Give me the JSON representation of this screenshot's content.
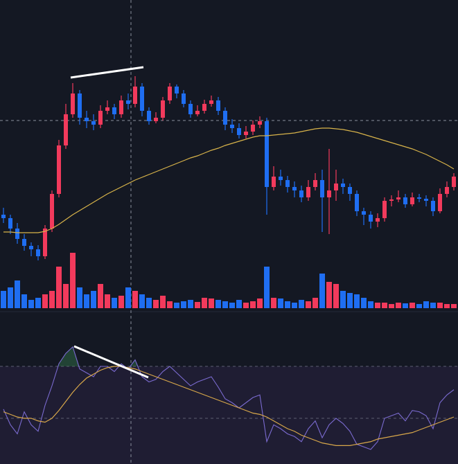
{
  "chart_data": {
    "type": "candlestick",
    "up_color": "#f23a5c",
    "down_color": "#1f6ef2",
    "ylim": [
      0,
      450
    ],
    "volume_ylim": [
      0,
      100
    ],
    "rsi_ylim": [
      0,
      100
    ],
    "rsi_levels": [
      70,
      30
    ],
    "open": [
      140,
      135,
      120,
      105,
      95,
      90,
      80,
      120,
      170,
      240,
      285,
      315,
      280,
      275,
      270,
      290,
      295,
      285,
      305,
      300,
      325,
      290,
      275,
      280,
      305,
      325,
      315,
      300,
      285,
      290,
      300,
      305,
      290,
      270,
      265,
      255,
      260,
      270,
      275,
      180,
      195,
      190,
      180,
      175,
      165,
      180,
      190,
      165,
      175,
      185,
      180,
      170,
      145,
      140,
      130,
      135,
      160,
      162,
      165,
      155,
      165,
      163,
      160,
      145,
      170,
      180
    ],
    "high": [
      150,
      140,
      128,
      112,
      100,
      96,
      125,
      175,
      248,
      300,
      330,
      320,
      290,
      285,
      298,
      305,
      300,
      312,
      315,
      340,
      330,
      295,
      288,
      310,
      330,
      328,
      320,
      305,
      298,
      306,
      312,
      310,
      295,
      278,
      272,
      268,
      276,
      282,
      280,
      210,
      205,
      196,
      188,
      182,
      190,
      200,
      205,
      235,
      205,
      192,
      185,
      175,
      150,
      145,
      142,
      165,
      168,
      175,
      170,
      172,
      170,
      168,
      165,
      178,
      188,
      200
    ],
    "low": [
      128,
      112,
      98,
      88,
      80,
      74,
      76,
      115,
      165,
      235,
      280,
      270,
      265,
      262,
      265,
      285,
      278,
      280,
      292,
      295,
      282,
      270,
      272,
      276,
      300,
      308,
      295,
      280,
      282,
      286,
      296,
      284,
      262,
      258,
      250,
      250,
      255,
      265,
      140,
      175,
      182,
      172,
      165,
      158,
      160,
      175,
      115,
      112,
      160,
      170,
      160,
      138,
      125,
      120,
      122,
      130,
      152,
      158,
      150,
      152,
      158,
      152,
      138,
      142,
      165,
      175
    ],
    "close": [
      135,
      120,
      105,
      95,
      90,
      80,
      120,
      170,
      240,
      285,
      315,
      280,
      275,
      270,
      290,
      295,
      285,
      305,
      300,
      325,
      290,
      275,
      280,
      305,
      325,
      315,
      300,
      285,
      290,
      300,
      305,
      290,
      270,
      265,
      255,
      260,
      270,
      275,
      180,
      195,
      190,
      180,
      175,
      165,
      180,
      190,
      165,
      175,
      185,
      180,
      170,
      145,
      140,
      130,
      135,
      160,
      162,
      165,
      155,
      165,
      163,
      160,
      145,
      170,
      180,
      195
    ],
    "volume": [
      25,
      30,
      40,
      20,
      12,
      15,
      20,
      25,
      60,
      35,
      80,
      30,
      20,
      25,
      35,
      20,
      15,
      18,
      30,
      25,
      20,
      15,
      12,
      18,
      10,
      8,
      10,
      12,
      9,
      15,
      14,
      12,
      10,
      8,
      12,
      8,
      10,
      14,
      60,
      15,
      14,
      10,
      8,
      12,
      10,
      15,
      50,
      38,
      35,
      25,
      22,
      20,
      15,
      10,
      8,
      8,
      6,
      8,
      7,
      8,
      6,
      10,
      8,
      8,
      6,
      6
    ],
    "ma": {
      "color": "#d9b44a",
      "values": [
        115,
        115,
        114,
        114,
        114,
        114,
        116,
        120,
        126,
        133,
        140,
        146,
        152,
        158,
        164,
        170,
        175,
        180,
        185,
        190,
        194,
        198,
        202,
        206,
        210,
        214,
        218,
        222,
        225,
        229,
        233,
        236,
        240,
        243,
        246,
        249,
        252,
        254,
        254,
        255,
        256,
        257,
        258,
        260,
        262,
        264,
        265,
        265,
        264,
        263,
        261,
        259,
        256,
        253,
        250,
        247,
        244,
        241,
        238,
        235,
        231,
        227,
        222,
        217,
        212,
        206
      ]
    },
    "rsi": {
      "color": "#7b6bd1",
      "values": [
        37,
        25,
        18,
        35,
        25,
        20,
        40,
        55,
        72,
        80,
        85,
        68,
        65,
        62,
        70,
        70,
        66,
        72,
        68,
        75,
        62,
        58,
        60,
        66,
        70,
        65,
        60,
        55,
        58,
        60,
        62,
        54,
        45,
        42,
        38,
        42,
        46,
        48,
        12,
        25,
        22,
        18,
        16,
        12,
        22,
        28,
        15,
        25,
        30,
        26,
        20,
        10,
        8,
        6,
        12,
        30,
        32,
        34,
        28,
        36,
        35,
        32,
        22,
        42,
        48,
        52
      ]
    },
    "rsi_ma": {
      "color": "#d9a84a",
      "values": [
        35,
        33,
        31,
        30,
        30,
        28,
        27,
        30,
        36,
        43,
        50,
        56,
        61,
        64,
        67,
        69,
        70,
        70,
        69,
        68,
        66,
        64,
        62,
        60,
        58,
        56,
        54,
        52,
        50,
        48,
        46,
        44,
        42,
        40,
        38,
        36,
        34,
        33,
        31,
        28,
        25,
        22,
        20,
        17,
        15,
        13,
        11,
        10,
        9,
        9,
        9,
        10,
        11,
        12,
        14,
        15,
        16,
        17,
        18,
        19,
        21,
        23,
        25,
        27,
        29,
        31
      ]
    }
  }
}
